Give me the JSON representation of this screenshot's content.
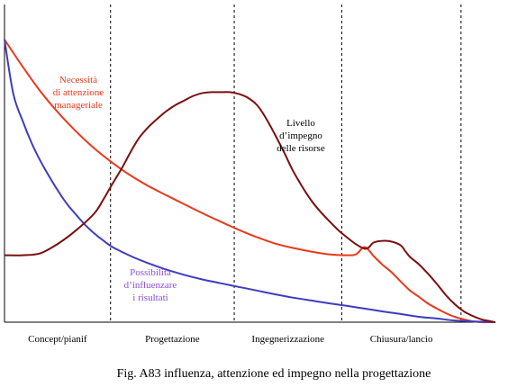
{
  "caption": "Fig. A83 influenza, attenzione ed impegno nella progettazione",
  "chart_data": {
    "type": "line",
    "x_range": [
      0,
      100
    ],
    "y_range": [
      0,
      100
    ],
    "phases": [
      "Concept/pianif",
      "Progettazione",
      "Ingegnerizzazione",
      "Chiusura/lancio"
    ],
    "phase_boundaries": [
      21.6,
      46.8,
      68.7,
      93.0
    ],
    "grid": false,
    "series": [
      {
        "key": "attenzione",
        "label_lines": [
          "Necessità",
          "di attenzione",
          "manageriale"
        ],
        "color": "#e8391c",
        "points": [
          [
            0,
            100
          ],
          [
            3.7,
            90.4
          ],
          [
            7.3,
            81.7
          ],
          [
            11.0,
            74.0
          ],
          [
            14.7,
            67.3
          ],
          [
            18.3,
            61.5
          ],
          [
            22.0,
            56.4
          ],
          [
            25.7,
            51.9
          ],
          [
            29.4,
            48.1
          ],
          [
            33.0,
            44.9
          ],
          [
            36.7,
            41.7
          ],
          [
            40.4,
            38.5
          ],
          [
            44.0,
            35.6
          ],
          [
            47.7,
            32.7
          ],
          [
            51.4,
            30.1
          ],
          [
            55.0,
            27.9
          ],
          [
            58.7,
            26.3
          ],
          [
            62.4,
            25.0
          ],
          [
            66.1,
            24.0
          ],
          [
            69.7,
            23.7
          ],
          [
            71.6,
            24.0
          ],
          [
            73.4,
            26.6
          ],
          [
            75.2,
            23.4
          ],
          [
            77.1,
            20.2
          ],
          [
            78.9,
            17.6
          ],
          [
            80.7,
            14.4
          ],
          [
            82.6,
            11.2
          ],
          [
            84.4,
            9.0
          ],
          [
            86.2,
            6.7
          ],
          [
            88.1,
            4.8
          ],
          [
            89.9,
            3.2
          ],
          [
            91.7,
            1.9
          ],
          [
            93.6,
            1.0
          ],
          [
            95.4,
            0.3
          ],
          [
            97.2,
            0.0
          ],
          [
            99.1,
            0.0
          ],
          [
            100,
            0.0
          ]
        ]
      },
      {
        "key": "influenza",
        "label_lines": [
          "Possibilità",
          "d’influenzare",
          "i risultati"
        ],
        "color": "#3d3dbf",
        "points": [
          [
            0,
            100
          ],
          [
            1.8,
            80.8
          ],
          [
            3.7,
            71.2
          ],
          [
            5.5,
            63.5
          ],
          [
            7.3,
            57.1
          ],
          [
            9.2,
            51.3
          ],
          [
            11.0,
            46.2
          ],
          [
            12.8,
            41.7
          ],
          [
            14.7,
            37.8
          ],
          [
            16.5,
            34.3
          ],
          [
            18.3,
            31.4
          ],
          [
            20.2,
            28.8
          ],
          [
            22.0,
            26.6
          ],
          [
            25.7,
            23.4
          ],
          [
            29.4,
            20.8
          ],
          [
            33.0,
            18.6
          ],
          [
            36.7,
            16.7
          ],
          [
            40.4,
            15.1
          ],
          [
            44.0,
            13.8
          ],
          [
            47.7,
            12.5
          ],
          [
            51.4,
            11.2
          ],
          [
            55.0,
            9.9
          ],
          [
            58.7,
            8.7
          ],
          [
            62.4,
            7.7
          ],
          [
            66.1,
            6.7
          ],
          [
            69.7,
            5.8
          ],
          [
            73.4,
            4.8
          ],
          [
            77.1,
            3.8
          ],
          [
            80.7,
            2.9
          ],
          [
            84.4,
            1.9
          ],
          [
            88.1,
            1.3
          ],
          [
            91.7,
            0.6
          ],
          [
            95.4,
            0.3
          ],
          [
            100,
            0.0
          ]
        ]
      },
      {
        "key": "impegno",
        "label_lines": [
          "Livello",
          "d’impegno",
          "delle risorse"
        ],
        "color": "#7a0f0f",
        "points": [
          [
            0,
            23.7
          ],
          [
            3.7,
            23.7
          ],
          [
            7.3,
            24.4
          ],
          [
            11.0,
            27.9
          ],
          [
            14.7,
            32.7
          ],
          [
            18.3,
            38.5
          ],
          [
            20.2,
            43.6
          ],
          [
            22.0,
            49.0
          ],
          [
            23.9,
            54.5
          ],
          [
            25.7,
            60.3
          ],
          [
            27.5,
            65.4
          ],
          [
            29.4,
            69.2
          ],
          [
            31.2,
            72.1
          ],
          [
            33.0,
            74.7
          ],
          [
            34.9,
            76.9
          ],
          [
            36.7,
            78.5
          ],
          [
            38.5,
            80.1
          ],
          [
            40.4,
            81.1
          ],
          [
            42.2,
            81.4
          ],
          [
            44.0,
            81.4
          ],
          [
            45.9,
            81.4
          ],
          [
            47.7,
            80.8
          ],
          [
            49.5,
            79.5
          ],
          [
            51.4,
            76.9
          ],
          [
            53.2,
            72.4
          ],
          [
            55.0,
            66.7
          ],
          [
            56.9,
            60.3
          ],
          [
            58.7,
            53.8
          ],
          [
            60.6,
            48.1
          ],
          [
            62.4,
            43.3
          ],
          [
            64.2,
            39.4
          ],
          [
            66.1,
            35.9
          ],
          [
            67.9,
            32.7
          ],
          [
            69.7,
            30.1
          ],
          [
            71.6,
            27.6
          ],
          [
            73.4,
            26.0
          ],
          [
            74.3,
            26.6
          ],
          [
            75.2,
            28.2
          ],
          [
            77.1,
            28.8
          ],
          [
            78.9,
            28.5
          ],
          [
            80.7,
            27.2
          ],
          [
            81.7,
            25.0
          ],
          [
            82.6,
            23.1
          ],
          [
            84.4,
            20.5
          ],
          [
            86.2,
            17.3
          ],
          [
            88.1,
            13.5
          ],
          [
            89.9,
            9.6
          ],
          [
            91.7,
            6.4
          ],
          [
            93.6,
            3.8
          ],
          [
            95.4,
            2.2
          ],
          [
            97.2,
            1.0
          ],
          [
            99.1,
            0.3
          ],
          [
            100,
            0.0
          ]
        ]
      }
    ]
  }
}
